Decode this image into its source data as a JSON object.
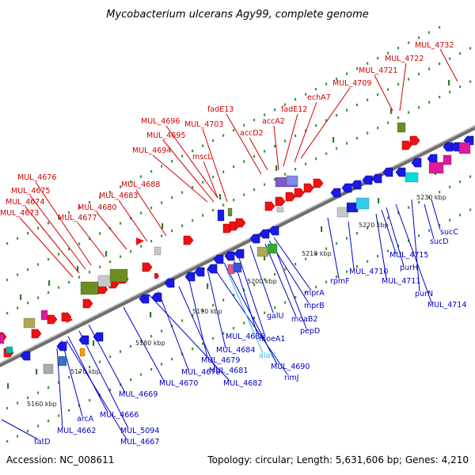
{
  "title": "Mycobacterium ulcerans Agy99, complete genome",
  "footer": {
    "accession": "Accession: NC_008611",
    "summary": "Topology: circular; Length: 5,631,606 bp; Genes: 4,210"
  },
  "colors": {
    "forward_label": "#d00000",
    "reverse_label": "#0000c8",
    "trna_label": "#33bbdd",
    "backbone": "#7a7a7a",
    "ticks": "#2e8b2e"
  },
  "scale": [
    {
      "label": "5160 kbp"
    },
    {
      "label": "5170 kbp"
    },
    {
      "label": "5180 kbp"
    },
    {
      "label": "5190 kbp"
    },
    {
      "label": "5200 kbp"
    },
    {
      "label": "5210 kbp"
    },
    {
      "label": "5220 kbp"
    },
    {
      "label": "5230 kbp"
    }
  ],
  "forward_labels": [
    {
      "text": "MUL_4732"
    },
    {
      "text": "MUL_4722"
    },
    {
      "text": "MUL_4721"
    },
    {
      "text": "MUL_4709"
    },
    {
      "text": "echA7"
    },
    {
      "text": "fadE12"
    },
    {
      "text": "accA2"
    },
    {
      "text": "fadE13"
    },
    {
      "text": "accD2"
    },
    {
      "text": "MUL_4696"
    },
    {
      "text": "MUL_4703"
    },
    {
      "text": "MUL_4695"
    },
    {
      "text": "MUL_4694"
    },
    {
      "text": "mscL"
    },
    {
      "text": "MUL_4688"
    },
    {
      "text": "MUL_4683"
    },
    {
      "text": "MUL_4680"
    },
    {
      "text": "MUL_4677"
    },
    {
      "text": "MUL_4676"
    },
    {
      "text": "MUL_4675"
    },
    {
      "text": "MUL_4674"
    },
    {
      "text": "MUL_4673"
    }
  ],
  "reverse_labels": [
    {
      "text": "sucC"
    },
    {
      "text": "sucD"
    },
    {
      "text": "MUL_4715"
    },
    {
      "text": "purH"
    },
    {
      "text": "MUL_4710"
    },
    {
      "text": "MUL_4711"
    },
    {
      "text": "purN"
    },
    {
      "text": "MUL_4714"
    },
    {
      "text": "rpmF"
    },
    {
      "text": "mprA"
    },
    {
      "text": "mprB"
    },
    {
      "text": "galU"
    },
    {
      "text": "moaB2"
    },
    {
      "text": "pepD"
    },
    {
      "text": "moeA1"
    },
    {
      "text": "MUL_4686"
    },
    {
      "text": "MUL_4690"
    },
    {
      "text": "rimJ"
    },
    {
      "text": "MUL_4684"
    },
    {
      "text": "MUL_4679"
    },
    {
      "text": "MUL_4681"
    },
    {
      "text": "MUL_4678"
    },
    {
      "text": "MUL_4682"
    },
    {
      "text": "MUL_4670"
    },
    {
      "text": "MUL_4669"
    },
    {
      "text": "MUL_4666"
    },
    {
      "text": "arcA"
    },
    {
      "text": "MUL_4662"
    },
    {
      "text": "MUL_5094"
    },
    {
      "text": "MUL_4667"
    },
    {
      "text": "tatD"
    }
  ],
  "trna_labels": [
    {
      "text": "alaV"
    }
  ]
}
